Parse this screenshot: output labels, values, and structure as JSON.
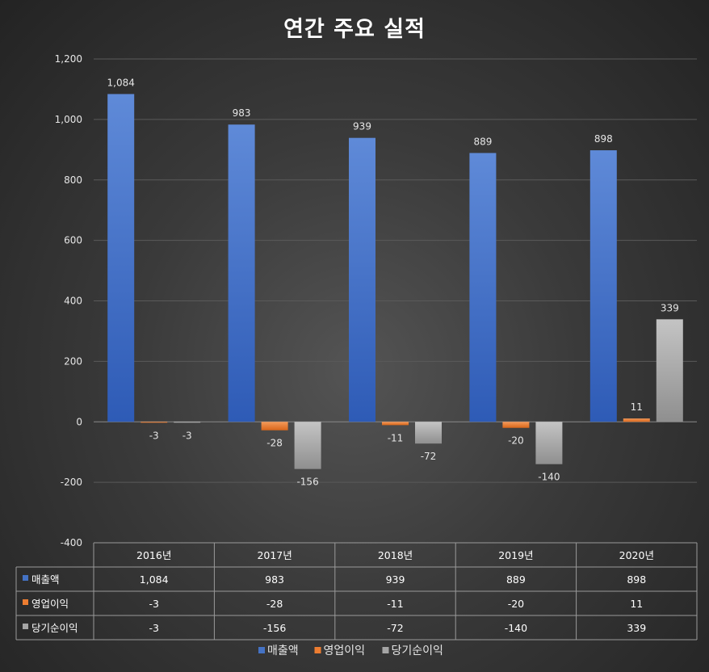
{
  "chart_data": {
    "type": "bar",
    "title": "연간 주요 실적",
    "categories": [
      "2016년",
      "2017년",
      "2018년",
      "2019년",
      "2020년"
    ],
    "series": [
      {
        "name": "매출액",
        "values": [
          1084,
          983,
          939,
          889,
          898
        ],
        "labels": [
          "1,084",
          "983",
          "939",
          "889",
          "898"
        ],
        "color": "#4472c4"
      },
      {
        "name": "영업이익",
        "values": [
          -3,
          -28,
          -11,
          -20,
          11
        ],
        "labels": [
          "-3",
          "-28",
          "-11",
          "-20",
          "11"
        ],
        "color": "#ed7d31"
      },
      {
        "name": "당기순이익",
        "values": [
          -3,
          -156,
          -72,
          -140,
          339
        ],
        "labels": [
          "-3",
          "-156",
          "-72",
          "-140",
          "339"
        ],
        "color": "#a5a5a5"
      }
    ],
    "ylim": [
      -400,
      1200
    ],
    "yticks": [
      -400,
      -200,
      0,
      200,
      400,
      600,
      800,
      1000,
      1200
    ],
    "ytick_labels": [
      "-400",
      "-200",
      "0",
      "200",
      "400",
      "600",
      "800",
      "1,000",
      "1,200"
    ],
    "grid": true,
    "legend_position": "bottom",
    "data_table": true
  }
}
